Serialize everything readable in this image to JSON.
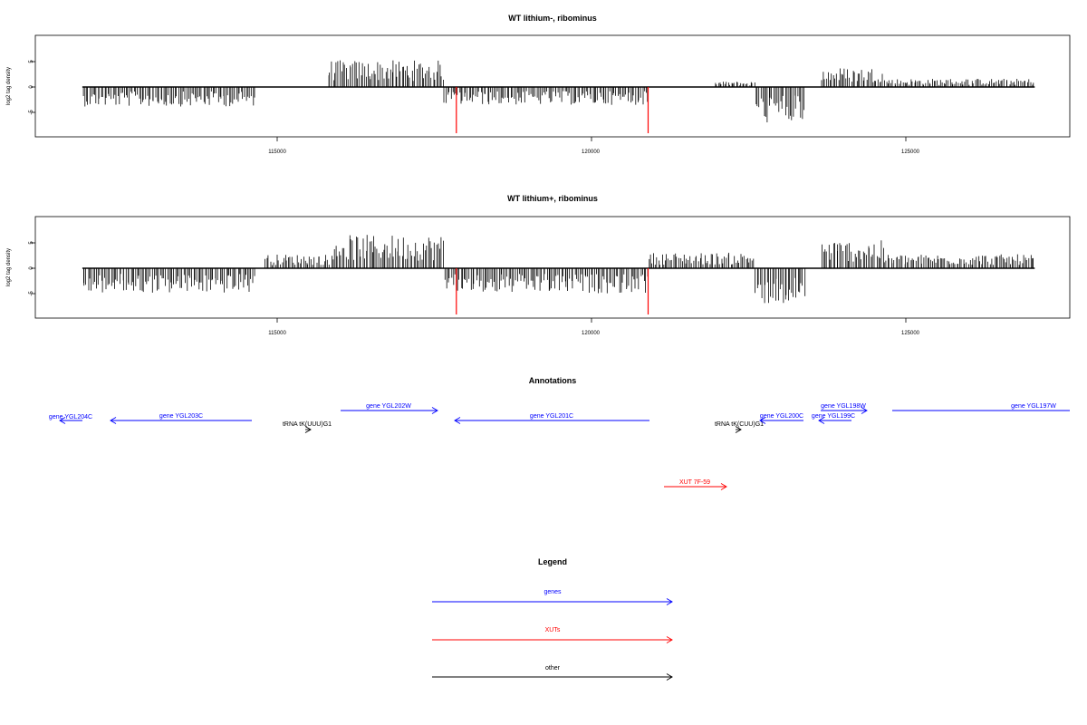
{
  "panels": [
    {
      "title": "WT lithium-, ribominus",
      "ylabel": "log2 tag density",
      "xticks": [
        115000,
        120000,
        125000
      ],
      "yticks": [
        -5,
        0,
        5
      ],
      "xlim": [
        111600,
        127600
      ],
      "ylim": [
        -9.5,
        10
      ]
    },
    {
      "title": "WT lithium+, ribominus",
      "ylabel": "log2 tag density",
      "xticks": [
        115000,
        120000,
        125000
      ],
      "yticks": [
        -5,
        0,
        5
      ],
      "xlim": [
        111600,
        127600
      ],
      "ylim": [
        -9.5,
        10
      ]
    }
  ],
  "annotations": {
    "title": "Annotations",
    "features": [
      {
        "label": "gene YGL204C",
        "kind": "gene",
        "strand": "-"
      },
      {
        "label": "gene YGL203C",
        "kind": "gene",
        "strand": "-"
      },
      {
        "label": "tRNA tK(UUU)G1",
        "kind": "other",
        "strand": "+"
      },
      {
        "label": "gene YGL202W",
        "kind": "gene",
        "strand": "+"
      },
      {
        "label": "gene YGL201C",
        "kind": "gene",
        "strand": "-"
      },
      {
        "label": "tRNA tK(CUU)G1",
        "kind": "other",
        "strand": "+"
      },
      {
        "label": "gene YGL200C",
        "kind": "gene",
        "strand": "-"
      },
      {
        "label": "gene YGL199C",
        "kind": "gene",
        "strand": "-"
      },
      {
        "label": "gene YGL198W",
        "kind": "gene",
        "strand": "+"
      },
      {
        "label": "gene YGL197W",
        "kind": "gene",
        "strand": "+"
      },
      {
        "label": "XUT 7F-59",
        "kind": "xut",
        "strand": "+"
      }
    ]
  },
  "legend": {
    "title": "Legend",
    "items": [
      {
        "label": "genes",
        "color": "#0000ff"
      },
      {
        "label": "XUTs",
        "color": "#ff0000"
      },
      {
        "label": "other",
        "color": "#000000"
      }
    ]
  },
  "colors": {
    "gene": "#0000ff",
    "xut": "#ff0000",
    "other": "#000000",
    "marker": "#ff0000",
    "bars": "#000000"
  },
  "chart_data": [
    {
      "type": "bar",
      "title": "WT lithium-, ribominus",
      "xlabel": "",
      "ylabel": "log2 tag density",
      "xlim": [
        111600,
        127600
      ],
      "ylim": [
        -9.5,
        10
      ],
      "grid": false,
      "markers_x": [
        117850,
        120900
      ],
      "regions": [
        {
          "from": 111900,
          "to": 114650,
          "value": -3.5
        },
        {
          "from": 115800,
          "to": 117650,
          "value": 4.8
        },
        {
          "from": 117650,
          "to": 120900,
          "value": -3.2
        },
        {
          "from": 121950,
          "to": 122600,
          "value": 1.0
        },
        {
          "from": 122600,
          "to": 123400,
          "value": -6.5
        },
        {
          "from": 123650,
          "to": 124650,
          "value": 3.5
        },
        {
          "from": 124650,
          "to": 127050,
          "value": 1.5
        }
      ]
    },
    {
      "type": "bar",
      "title": "WT lithium+, ribominus",
      "xlabel": "",
      "ylabel": "log2 tag density",
      "xlim": [
        111600,
        127600
      ],
      "ylim": [
        -9.5,
        10
      ],
      "grid": false,
      "markers_x": [
        117850,
        120900
      ],
      "regions": [
        {
          "from": 111900,
          "to": 114650,
          "value": -4.5
        },
        {
          "from": 114800,
          "to": 115900,
          "value": 2.5
        },
        {
          "from": 115900,
          "to": 117650,
          "value": 6.0
        },
        {
          "from": 117650,
          "to": 120900,
          "value": -4.5
        },
        {
          "from": 120900,
          "to": 122600,
          "value": 2.8
        },
        {
          "from": 122600,
          "to": 123400,
          "value": -6.5
        },
        {
          "from": 123650,
          "to": 124650,
          "value": 5.0
        },
        {
          "from": 124650,
          "to": 127050,
          "value": 2.5
        }
      ]
    }
  ]
}
